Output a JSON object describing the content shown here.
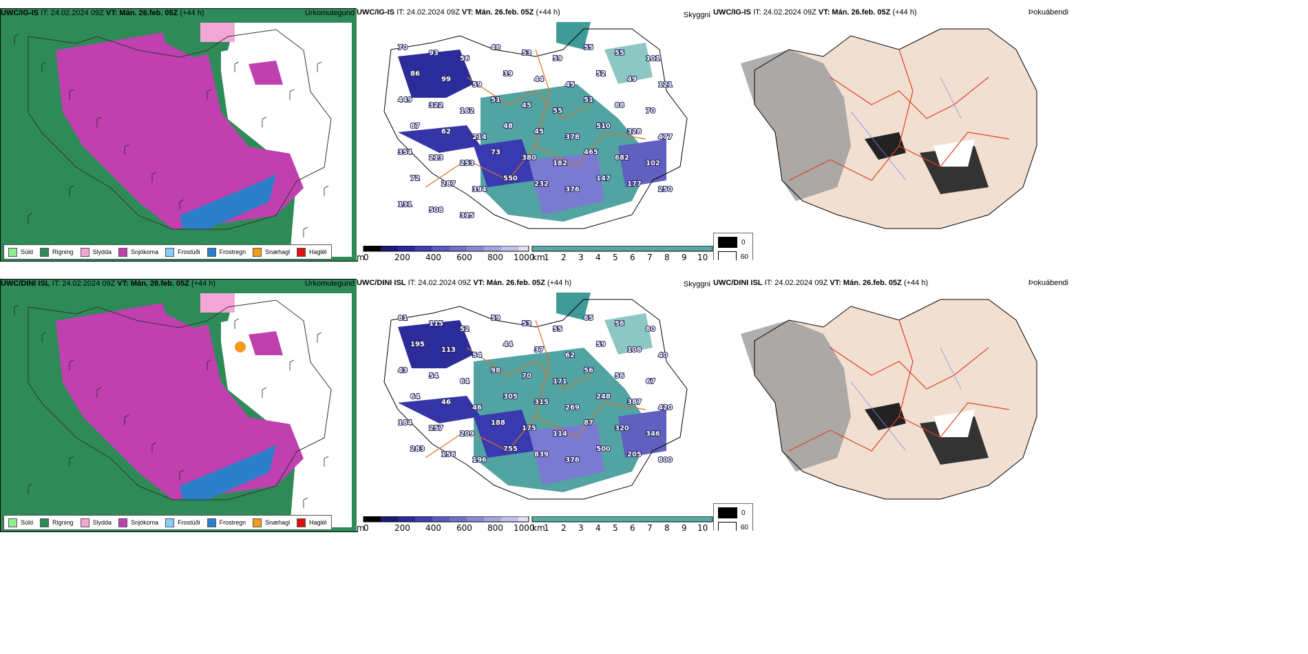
{
  "legend_labels": [
    "Súld",
    "Rigning",
    "Slydda",
    "Snjókoma",
    "Frostúði",
    "Frostregn",
    "Snæhagl",
    "Haglél"
  ],
  "legend_colors": [
    "#90ee90",
    "#2e8b57",
    "#f4a6d7",
    "#c040b0",
    "#87cefa",
    "#2a7fc8",
    "#f59a1a",
    "#e01010"
  ],
  "panel_titles": {
    "precip_type": "Úrkomutegund",
    "visibility": "Skyggni",
    "fog": "Þokuábendi"
  },
  "rows": [
    {
      "model": "UWC/IG-IS",
      "it": "IT: 24.02.2024 09Z",
      "vt": "VT: Mán. 26.feb. 05Z",
      "lead": "(+44 h)",
      "vis_labels": [
        "70",
        "93",
        "56",
        "48",
        "53",
        "59",
        "55",
        "55",
        "101",
        "86",
        "99",
        "59",
        "39",
        "44",
        "45",
        "52",
        "49",
        "121",
        "449",
        "322",
        "162",
        "51",
        "45",
        "55",
        "51",
        "88",
        "70",
        "87",
        "62",
        "214",
        "48",
        "45",
        "378",
        "510",
        "328",
        "477",
        "354",
        "213",
        "253",
        "73",
        "380",
        "182",
        "465",
        "682",
        "102",
        "72",
        "287",
        "394",
        "550",
        "232",
        "376",
        "147",
        "177",
        "250",
        "131",
        "508",
        "315"
      ]
    },
    {
      "model": "UWC/DINI ISL",
      "it": "IT: 24.02.2024 09Z",
      "vt": "VT: Mán. 26.feb. 05Z",
      "lead": "(+44 h)",
      "vis_labels": [
        "81",
        "115",
        "52",
        "59",
        "53",
        "55",
        "65",
        "56",
        "80",
        "195",
        "113",
        "54",
        "44",
        "37",
        "62",
        "59",
        "108",
        "40",
        "43",
        "54",
        "64",
        "98",
        "70",
        "171",
        "56",
        "56",
        "67",
        "64",
        "46",
        "46",
        "305",
        "315",
        "269",
        "248",
        "387",
        "420",
        "184",
        "257",
        "209",
        "188",
        "175",
        "114",
        "87",
        "320",
        "346",
        "283",
        "156",
        "196",
        "755",
        "839",
        "376",
        "500",
        "205",
        "800"
      ]
    }
  ],
  "alt_bar": {
    "unit": "m",
    "ticks": [
      "0",
      "200",
      "400",
      "600",
      "800",
      "1000"
    ]
  },
  "km_bar": {
    "unit": "km",
    "ticks": [
      "1",
      "2",
      "3",
      "4",
      "5",
      "6",
      "7",
      "8",
      "9",
      "10"
    ]
  },
  "fog_legend": [
    "0",
    "60"
  ],
  "map_icons": {
    "wind_barbs": "wind-barb-icon",
    "coastline": "iceland-coastline"
  }
}
